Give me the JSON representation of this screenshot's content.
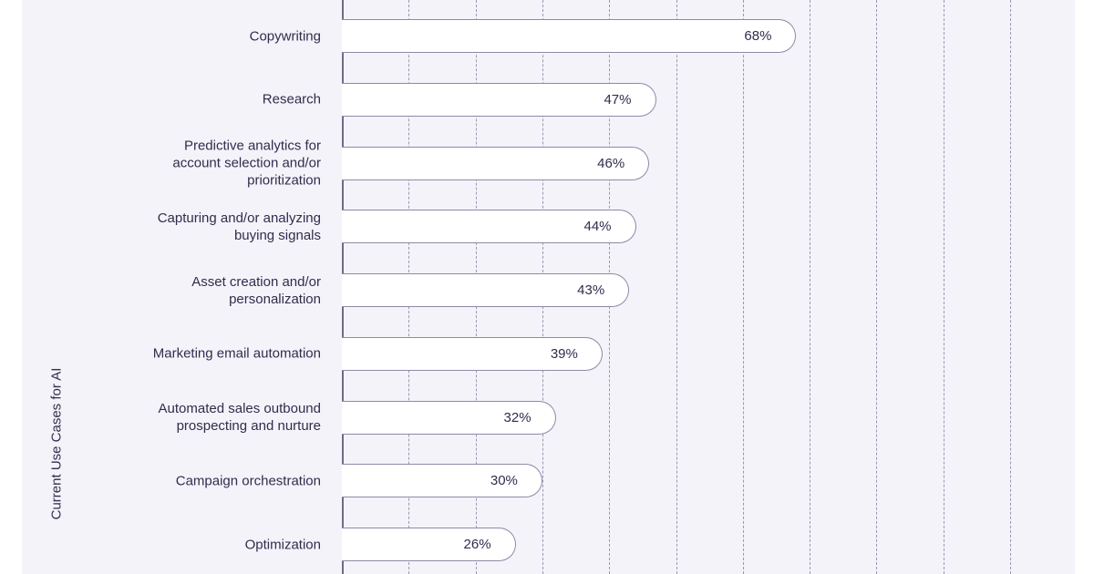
{
  "page": {
    "background": "#ffffff",
    "panel_background": "#f4f3f9"
  },
  "chart_data": {
    "type": "bar",
    "orientation": "horizontal",
    "title": "",
    "xlabel": "",
    "ylabel": "Current Use Cases for AI",
    "xlim": [
      0,
      100
    ],
    "gridline_step_pct": 10,
    "grid": "dashed-vertical",
    "legend": "none",
    "categories": [
      "Copywriting",
      "Research",
      "Predictive analytics for\naccount selection and/or\nprioritization",
      "Capturing and/or analyzing\nbuying signals",
      "Asset creation and/or\npersonalization",
      "Marketing email automation",
      "Automated sales outbound\nprospecting and nurture",
      "Campaign orchestration",
      "Optimization"
    ],
    "values": [
      68,
      47,
      46,
      44,
      43,
      39,
      32,
      30,
      26
    ],
    "value_labels": [
      "68%",
      "47%",
      "46%",
      "44%",
      "43%",
      "39%",
      "32%",
      "30%",
      "26%"
    ],
    "colors": {
      "bar_fill": "#ffffff",
      "bar_border": "#8e8aa8",
      "axis_line": "#6f6b88",
      "gridline": "#8d89a6",
      "text": "#302d4d"
    }
  }
}
